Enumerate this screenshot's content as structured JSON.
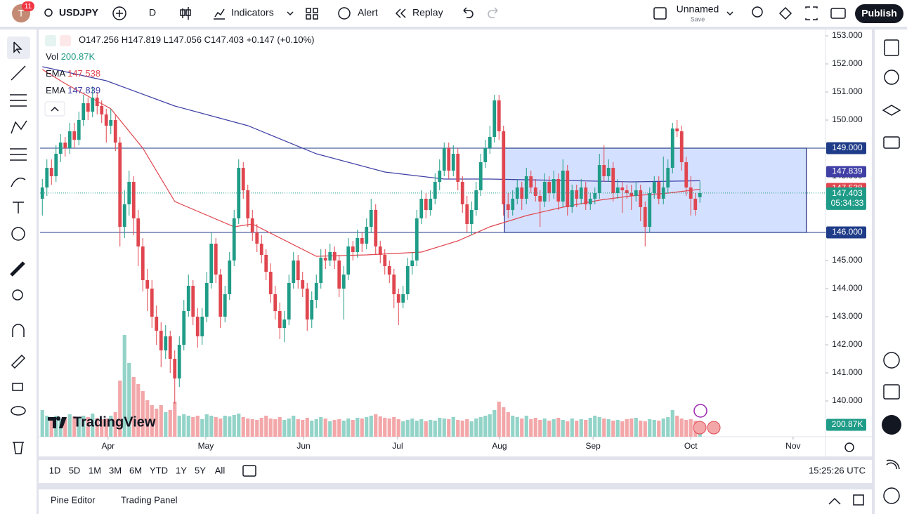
{
  "ui": {
    "avatar": "T",
    "badge": "11",
    "symbol": "USDJPY",
    "interval": "D",
    "indicators": "Indicators",
    "alert": "Alert",
    "replay": "Replay",
    "layout_name": "Unnamed",
    "save": "Save",
    "publish": "Publish",
    "ranges": [
      "1D",
      "5D",
      "1M",
      "3M",
      "6M",
      "YTD",
      "1Y",
      "5Y",
      "All"
    ],
    "clock": "15:25:26 UTC",
    "tabs": [
      "Pine Editor",
      "Trading Panel"
    ],
    "watermark": "TradingView"
  },
  "chart_data": {
    "type": "candlestick",
    "legend": {
      "o": "O",
      "h": "H",
      "l": "L",
      "c": "C",
      "change": "+0.147 (+0.10%)",
      "vol": "Vol",
      "vol_value": "200.87K"
    },
    "up_color": "#1f9c87",
    "down_color": "#e0464f",
    "up_volume_color": "#93d3c8",
    "down_volume_color": "#f3a7a9",
    "xlim": [
      -0.5,
      171.5
    ],
    "ylim": [
      138.725,
      153.2
    ],
    "yticks": [
      {
        "value": 140,
        "label": "140.000"
      },
      {
        "value": 141,
        "label": "141.000"
      },
      {
        "value": 142,
        "label": "142.000"
      },
      {
        "value": 143,
        "label": "143.000"
      },
      {
        "value": 144,
        "label": "144.000"
      },
      {
        "value": 145,
        "label": "145.000"
      },
      {
        "value": 146,
        "label": "146.000"
      },
      {
        "value": 147,
        "label": "147.000"
      },
      {
        "value": 148,
        "label": "148.000"
      },
      {
        "value": 149,
        "label": "149.000"
      },
      {
        "value": 150,
        "label": "150.000"
      },
      {
        "value": 151,
        "label": "151.000"
      },
      {
        "value": 152,
        "label": "152.000"
      },
      {
        "value": 153,
        "label": "153.000"
      }
    ],
    "xticks": [
      {
        "value": 14.4,
        "label": "Apr"
      },
      {
        "value": 35.8,
        "label": "May"
      },
      {
        "value": 57.2,
        "label": "Jun"
      },
      {
        "value": 77.8,
        "label": "Jul"
      },
      {
        "value": 100.1,
        "label": "Aug"
      },
      {
        "value": 120.6,
        "label": "Sep"
      },
      {
        "value": 142,
        "label": "Oct"
      },
      {
        "value": 164.4,
        "label": "Nov"
      }
    ],
    "grid": false,
    "hlines": [
      {
        "value": 149,
        "label": "149.000"
      },
      {
        "value": 146,
        "label": "146.000"
      }
    ],
    "rectangle": {
      "x": [
        101.2,
        167.3
      ],
      "y": [
        146,
        149
      ]
    },
    "countdown": "05:34:33",
    "series": [
      {
        "name": "EMA",
        "color": "#e0464f",
        "x": [
          0,
          5,
          15,
          22,
          29,
          42,
          46,
          60,
          71,
          83,
          91,
          98,
          106,
          114,
          122,
          129,
          137,
          144
        ],
        "values": [
          151.8,
          151.3,
          150.4,
          149.0,
          147.1,
          146.2,
          146.3,
          145.15,
          145.2,
          145.3,
          145.7,
          146.2,
          146.6,
          146.9,
          147.15,
          147.3,
          147.4,
          147.538
        ]
      },
      {
        "name": "EMA",
        "color": "#3f3fa5",
        "x": [
          0,
          14,
          29,
          45,
          60,
          75,
          88,
          98,
          114,
          129,
          144
        ],
        "values": [
          151.9,
          151.4,
          150.5,
          149.8,
          148.8,
          148.15,
          147.9,
          147.9,
          147.85,
          147.8,
          147.839
        ]
      }
    ],
    "candles": [
      [
        147.2,
        147.9,
        146.6,
        147.6
      ],
      [
        147.6,
        148.6,
        147.3,
        148.3
      ],
      [
        148.3,
        148.6,
        147.7,
        148.0
      ],
      [
        148.0,
        149.1,
        147.8,
        148.8
      ],
      [
        148.8,
        149.5,
        148.5,
        149.2
      ],
      [
        149.2,
        149.4,
        148.7,
        149.0
      ],
      [
        149.0,
        149.9,
        148.8,
        149.6
      ],
      [
        149.6,
        149.9,
        149.0,
        149.3
      ],
      [
        149.3,
        150.3,
        149.1,
        150.0
      ],
      [
        150.0,
        150.9,
        149.8,
        150.6
      ],
      [
        150.6,
        150.8,
        150.0,
        150.3
      ],
      [
        150.3,
        151.2,
        150.1,
        150.8
      ],
      [
        150.8,
        151.0,
        150.2,
        150.5
      ],
      [
        150.5,
        150.7,
        149.9,
        150.2
      ],
      [
        150.2,
        150.4,
        149.2,
        149.8
      ],
      [
        149.8,
        150.4,
        149.5,
        150.0
      ],
      [
        150.0,
        150.2,
        148.9,
        149.2
      ],
      [
        149.2,
        149.4,
        145.5,
        146.2
      ],
      [
        146.2,
        147.5,
        145.8,
        147.0
      ],
      [
        147.0,
        148.2,
        146.6,
        147.8
      ],
      [
        147.8,
        148.0,
        145.9,
        146.5
      ],
      [
        146.5,
        146.8,
        144.8,
        145.5
      ],
      [
        145.5,
        145.8,
        143.9,
        144.3
      ],
      [
        144.3,
        144.7,
        143.2,
        144.0
      ],
      [
        144.0,
        144.3,
        142.6,
        143.0
      ],
      [
        143.0,
        143.4,
        142.0,
        142.5
      ],
      [
        142.5,
        142.8,
        141.2,
        141.8
      ],
      [
        141.8,
        142.7,
        141.5,
        142.3
      ],
      [
        142.3,
        142.5,
        141.0,
        141.5
      ],
      [
        141.5,
        141.8,
        139.9,
        140.8
      ],
      [
        140.8,
        142.3,
        140.5,
        142.0
      ],
      [
        142.0,
        143.6,
        141.8,
        143.2
      ],
      [
        143.2,
        144.5,
        143.0,
        144.1
      ],
      [
        144.1,
        144.3,
        142.7,
        143.0
      ],
      [
        143.0,
        143.3,
        141.9,
        142.3
      ],
      [
        142.3,
        143.3,
        142.0,
        143.0
      ],
      [
        143.0,
        144.6,
        142.8,
        144.2
      ],
      [
        144.2,
        146.0,
        144.0,
        145.6
      ],
      [
        145.6,
        145.8,
        144.2,
        144.5
      ],
      [
        144.5,
        144.7,
        142.6,
        143.0
      ],
      [
        143.0,
        144.1,
        142.8,
        143.8
      ],
      [
        143.8,
        145.3,
        143.6,
        145.0
      ],
      [
        145.0,
        146.8,
        144.8,
        146.5
      ],
      [
        146.5,
        148.6,
        146.3,
        148.3
      ],
      [
        148.3,
        148.5,
        147.2,
        147.5
      ],
      [
        147.5,
        147.7,
        146.2,
        146.5
      ],
      [
        146.5,
        146.8,
        145.7,
        146.0
      ],
      [
        146.0,
        146.3,
        145.3,
        145.6
      ],
      [
        145.6,
        145.9,
        144.9,
        145.2
      ],
      [
        145.2,
        145.4,
        144.3,
        144.6
      ],
      [
        144.6,
        144.9,
        143.5,
        143.8
      ],
      [
        143.8,
        144.1,
        142.9,
        143.2
      ],
      [
        143.2,
        143.5,
        142.2,
        142.6
      ],
      [
        142.6,
        143.2,
        142.1,
        142.9
      ],
      [
        142.9,
        144.5,
        142.7,
        144.2
      ],
      [
        144.2,
        145.3,
        144.0,
        145.0
      ],
      [
        145.0,
        145.2,
        144.0,
        144.3
      ],
      [
        144.3,
        144.6,
        143.7,
        144.0
      ],
      [
        144.0,
        144.2,
        142.5,
        142.9
      ],
      [
        142.9,
        143.9,
        142.6,
        143.6
      ],
      [
        143.6,
        144.5,
        143.3,
        144.2
      ],
      [
        144.2,
        145.4,
        144.0,
        145.1
      ],
      [
        145.1,
        145.4,
        144.7,
        145.0
      ],
      [
        145.0,
        145.6,
        144.8,
        145.3
      ],
      [
        145.3,
        145.5,
        144.7,
        145.0
      ],
      [
        145.0,
        145.2,
        143.7,
        144.0
      ],
      [
        144.0,
        144.8,
        142.9,
        144.5
      ],
      [
        144.5,
        145.8,
        144.3,
        145.5
      ],
      [
        145.5,
        145.7,
        145.0,
        145.3
      ],
      [
        145.3,
        146.1,
        145.1,
        145.8
      ],
      [
        145.8,
        146.0,
        145.3,
        145.6
      ],
      [
        145.6,
        146.5,
        145.4,
        146.2
      ],
      [
        146.2,
        147.2,
        146.0,
        146.8
      ],
      [
        146.8,
        147.0,
        145.2,
        145.5
      ],
      [
        145.5,
        145.7,
        144.9,
        145.2
      ],
      [
        145.2,
        145.4,
        144.5,
        144.8
      ],
      [
        144.8,
        145.0,
        144.2,
        144.5
      ],
      [
        144.5,
        144.7,
        143.3,
        143.8
      ],
      [
        143.8,
        144.0,
        142.7,
        143.5
      ],
      [
        143.5,
        144.1,
        143.3,
        143.8
      ],
      [
        143.8,
        145.1,
        143.6,
        144.8
      ],
      [
        144.8,
        145.3,
        144.5,
        145.0
      ],
      [
        145.0,
        146.8,
        144.8,
        146.5
      ],
      [
        146.5,
        147.5,
        146.3,
        147.2
      ],
      [
        147.2,
        147.4,
        146.5,
        146.8
      ],
      [
        146.8,
        147.5,
        146.6,
        147.2
      ],
      [
        147.2,
        148.1,
        147.0,
        147.8
      ],
      [
        147.8,
        148.6,
        147.5,
        148.2
      ],
      [
        148.2,
        149.2,
        148.0,
        149.0
      ],
      [
        149.0,
        149.2,
        147.9,
        148.2
      ],
      [
        148.2,
        149.1,
        148.0,
        148.8
      ],
      [
        148.8,
        149.0,
        147.5,
        147.8
      ],
      [
        147.8,
        148.0,
        146.7,
        147.0
      ],
      [
        147.0,
        147.3,
        146.0,
        146.3
      ],
      [
        146.3,
        147.1,
        145.9,
        146.8
      ],
      [
        146.8,
        147.8,
        146.6,
        147.5
      ],
      [
        147.5,
        148.8,
        147.3,
        148.5
      ],
      [
        148.5,
        149.3,
        148.3,
        149.0
      ],
      [
        149.0,
        149.8,
        148.8,
        149.4
      ],
      [
        149.4,
        150.9,
        149.2,
        150.7
      ],
      [
        150.7,
        150.9,
        149.3,
        149.6
      ],
      [
        149.6,
        149.8,
        146.6,
        147.0
      ],
      [
        147.0,
        147.4,
        146.5,
        146.8
      ],
      [
        146.8,
        147.5,
        146.6,
        147.2
      ],
      [
        147.2,
        147.9,
        147.0,
        147.6
      ],
      [
        147.6,
        147.8,
        146.8,
        147.2
      ],
      [
        147.2,
        148.3,
        147.0,
        148.0
      ],
      [
        148.0,
        148.2,
        147.4,
        147.6
      ],
      [
        147.6,
        147.9,
        147.1,
        147.3
      ],
      [
        147.3,
        147.5,
        146.2,
        147.1
      ],
      [
        147.1,
        148.1,
        146.9,
        147.8
      ],
      [
        147.8,
        148.0,
        147.1,
        147.4
      ],
      [
        147.4,
        148.2,
        147.2,
        147.9
      ],
      [
        147.9,
        148.1,
        146.8,
        147.1
      ],
      [
        147.1,
        148.6,
        146.9,
        148.2
      ],
      [
        148.2,
        148.4,
        146.6,
        146.9
      ],
      [
        146.9,
        147.7,
        146.7,
        147.5
      ],
      [
        147.5,
        147.7,
        146.9,
        147.2
      ],
      [
        147.2,
        147.9,
        147.0,
        147.6
      ],
      [
        147.6,
        147.8,
        146.8,
        147.0
      ],
      [
        147.0,
        147.4,
        146.8,
        147.2
      ],
      [
        147.2,
        147.6,
        147.0,
        147.4
      ],
      [
        147.4,
        148.8,
        147.2,
        148.4
      ],
      [
        148.4,
        149.1,
        147.8,
        148.0
      ],
      [
        148.0,
        148.6,
        147.8,
        148.3
      ],
      [
        148.3,
        148.5,
        147.1,
        147.4
      ],
      [
        147.4,
        147.9,
        147.2,
        147.6
      ],
      [
        147.6,
        147.8,
        146.7,
        147.5
      ],
      [
        147.5,
        147.7,
        147.2,
        147.4
      ],
      [
        147.4,
        147.7,
        146.8,
        147.3
      ],
      [
        147.3,
        147.8,
        147.1,
        147.5
      ],
      [
        147.5,
        147.7,
        146.4,
        146.9
      ],
      [
        146.9,
        147.1,
        145.5,
        146.2
      ],
      [
        146.2,
        147.6,
        146.0,
        147.4
      ],
      [
        147.4,
        148.0,
        147.2,
        147.8
      ],
      [
        147.8,
        148.0,
        147.0,
        147.2
      ],
      [
        147.2,
        148.7,
        147.0,
        147.6
      ],
      [
        147.6,
        148.6,
        147.4,
        148.3
      ],
      [
        148.3,
        149.9,
        148.1,
        149.7
      ],
      [
        149.7,
        150.0,
        149.4,
        149.6
      ],
      [
        149.6,
        149.8,
        148.2,
        148.5
      ],
      [
        148.5,
        148.7,
        147.3,
        147.6
      ],
      [
        147.6,
        148.0,
        146.6,
        147.2
      ],
      [
        147.2,
        147.4,
        146.6,
        146.8
      ],
      [
        147.256,
        147.819,
        147.056,
        147.403
      ]
    ],
    "volumes": [
      380,
      300,
      280,
      300,
      250,
      270,
      320,
      290,
      260,
      300,
      280,
      330,
      270,
      250,
      260,
      300,
      350,
      800,
      1450,
      1050,
      850,
      750,
      650,
      520,
      450,
      400,
      450,
      350,
      380,
      500,
      300,
      320,
      300,
      280,
      300,
      250,
      320,
      300,
      280,
      260,
      300,
      290,
      310,
      330,
      280,
      260,
      250,
      240,
      270,
      300,
      260,
      250,
      280,
      240,
      260,
      300,
      250,
      240,
      270,
      230,
      250,
      280,
      260,
      220,
      240,
      250,
      230,
      260,
      240,
      270,
      260,
      280,
      300,
      320,
      290,
      270,
      260,
      280,
      250,
      220,
      240,
      260,
      230,
      250,
      220,
      240,
      230,
      270,
      260,
      250,
      280,
      240,
      230,
      250,
      220,
      260,
      280,
      300,
      320,
      380,
      500,
      420,
      350,
      300,
      280,
      260,
      300,
      250,
      270,
      240,
      260,
      230,
      250,
      270,
      240,
      220,
      260,
      230,
      250,
      240,
      270,
      300,
      280,
      260,
      250,
      230,
      240,
      220,
      250,
      260,
      270,
      230,
      220,
      250,
      240,
      230,
      260,
      280,
      380,
      300,
      260,
      240,
      250,
      230,
      200.87
    ]
  }
}
